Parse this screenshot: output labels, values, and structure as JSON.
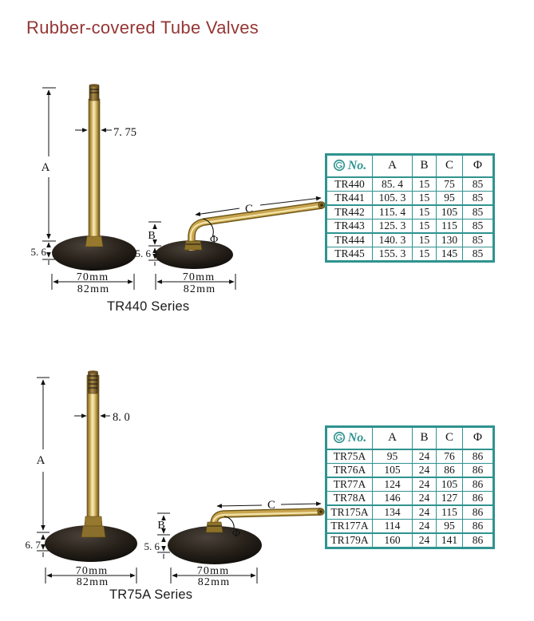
{
  "page": {
    "title": "Rubber-covered Tube Valves"
  },
  "colors": {
    "title_text": "#943634",
    "table_border": "#2f9390",
    "brand_teal": "#2f9390",
    "table_text": "#161616",
    "brass_light": "#f3e5ad",
    "brass_mid": "#c9a54f",
    "brass_dark": "#6f5712",
    "rubber": "#14100d",
    "annotation": "#111111"
  },
  "figures": [
    {
      "series_label": "TR440 Series",
      "annotations": {
        "height": "A",
        "bend_height": "B",
        "arm_length": "C",
        "angle": "Φ",
        "stem_diameter": "7. 75",
        "base_thickness_straight": "5. 6",
        "base_thickness_bent": "5. 6",
        "base_width_inner": "70mm",
        "base_width_outer": "82mm"
      }
    },
    {
      "series_label": "TR75A Series",
      "annotations": {
        "height": "A",
        "bend_height": "B",
        "arm_length": "C",
        "angle": "Φ",
        "stem_diameter": "8. 0",
        "base_thickness_straight": "6. 7",
        "base_thickness_bent": "5. 6",
        "base_width_inner": "70mm",
        "base_width_outer": "82mm"
      }
    }
  ],
  "tables": [
    {
      "columns": [
        {
          "key": "no",
          "label": "No."
        },
        {
          "key": "a",
          "label": "A"
        },
        {
          "key": "b",
          "label": "B"
        },
        {
          "key": "c",
          "label": "C"
        },
        {
          "key": "phi",
          "label": "Φ"
        }
      ],
      "rows": [
        [
          "TR440",
          "85. 4",
          "15",
          "75",
          "85"
        ],
        [
          "TR441",
          "105. 3",
          "15",
          "95",
          "85"
        ],
        [
          "TR442",
          "115. 4",
          "15",
          "105",
          "85"
        ],
        [
          "TR443",
          "125. 3",
          "15",
          "115",
          "85"
        ],
        [
          "TR444",
          "140. 3",
          "15",
          "130",
          "85"
        ],
        [
          "TR445",
          "155. 3",
          "15",
          "145",
          "85"
        ]
      ]
    },
    {
      "columns": [
        {
          "key": "no",
          "label": "No."
        },
        {
          "key": "a",
          "label": "A"
        },
        {
          "key": "b",
          "label": "B"
        },
        {
          "key": "c",
          "label": "C"
        },
        {
          "key": "phi",
          "label": "Φ"
        }
      ],
      "rows": [
        [
          "TR75A",
          "95",
          "24",
          "76",
          "86"
        ],
        [
          "TR76A",
          "105",
          "24",
          "86",
          "86"
        ],
        [
          "TR77A",
          "124",
          "24",
          "105",
          "86"
        ],
        [
          "TR78A",
          "146",
          "24",
          "127",
          "86"
        ],
        [
          "TR175A",
          "134",
          "24",
          "115",
          "86"
        ],
        [
          "TR177A",
          "114",
          "24",
          "95",
          "86"
        ],
        [
          "TR179A",
          "160",
          "24",
          "141",
          "86"
        ]
      ]
    }
  ]
}
